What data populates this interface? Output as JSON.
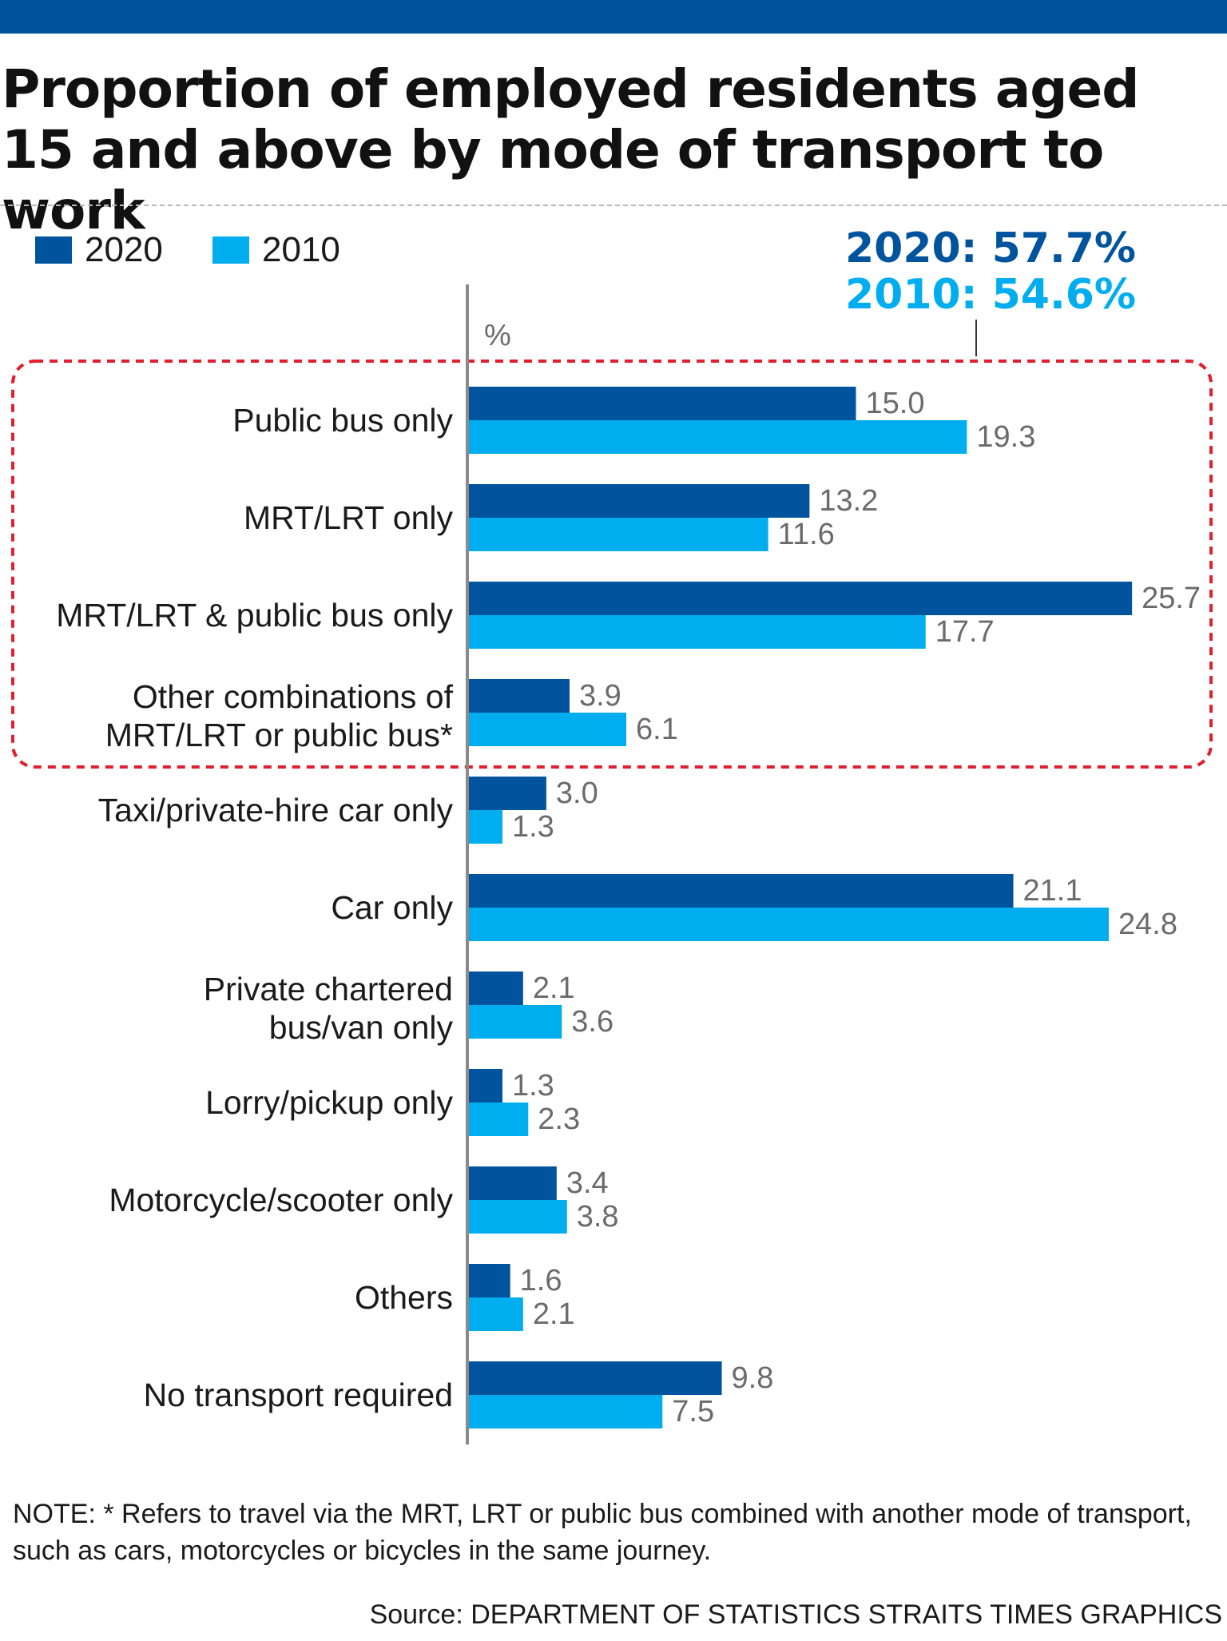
{
  "title": "Proportion of employed residents aged 15 and above by mode of transport to work",
  "legend": [
    {
      "label": "2020",
      "color": "#00549e"
    },
    {
      "label": "2010",
      "color": "#00aeef"
    }
  ],
  "annotation": {
    "total_2020": "2020: 57.7%",
    "total_2010": "2010: 54.6%"
  },
  "axis_unit": "%",
  "chart_data": {
    "type": "bar",
    "orientation": "horizontal",
    "title": "Proportion of employed residents aged 15 and above by mode of transport to work",
    "xlabel": "%",
    "ylabel": "",
    "xlim": [
      0,
      27
    ],
    "grid": false,
    "legend_position": "top-left",
    "categories": [
      "Public bus only",
      "MRT/LRT only",
      "MRT/LRT & public bus only",
      "Other combinations of MRT/LRT or public bus*",
      "Taxi/private-hire car only",
      "Car only",
      "Private chartered bus/van only",
      "Lorry/pickup only",
      "Motorcycle/scooter only",
      "Others",
      "No transport required"
    ],
    "series": [
      {
        "name": "2020",
        "color": "#00549e",
        "values": [
          15.0,
          13.2,
          25.7,
          3.9,
          3.0,
          21.1,
          2.1,
          1.3,
          3.4,
          1.6,
          9.8
        ]
      },
      {
        "name": "2010",
        "color": "#00aeef",
        "values": [
          19.3,
          11.6,
          17.7,
          6.1,
          1.3,
          24.8,
          3.6,
          2.3,
          3.8,
          2.1,
          7.5
        ]
      }
    ],
    "data_labels": {
      "2020": [
        "15.0",
        "13.2",
        "25.7",
        "3.9",
        "3.0",
        "21.1",
        "2.1",
        "1.3",
        "3.4",
        "1.6",
        "9.8"
      ],
      "2010": [
        "19.3",
        "11.6",
        "17.7",
        "6.1",
        "1.3",
        "24.8",
        "3.6",
        "2.3",
        "3.8",
        "2.1",
        "7.5"
      ]
    },
    "highlight_group": {
      "categories": [
        "Public bus only",
        "MRT/LRT only",
        "MRT/LRT & public bus only",
        "Other combinations of MRT/LRT or public bus*"
      ],
      "border_color": "#e0202e"
    }
  },
  "note": "NOTE: * Refers to travel via the MRT, LRT or public bus combined with another mode of transport, such as cars, motorcycles or bicycles in the same journey.",
  "source": "Source: DEPARTMENT OF STATISTICS   STRAITS TIMES GRAPHICS"
}
